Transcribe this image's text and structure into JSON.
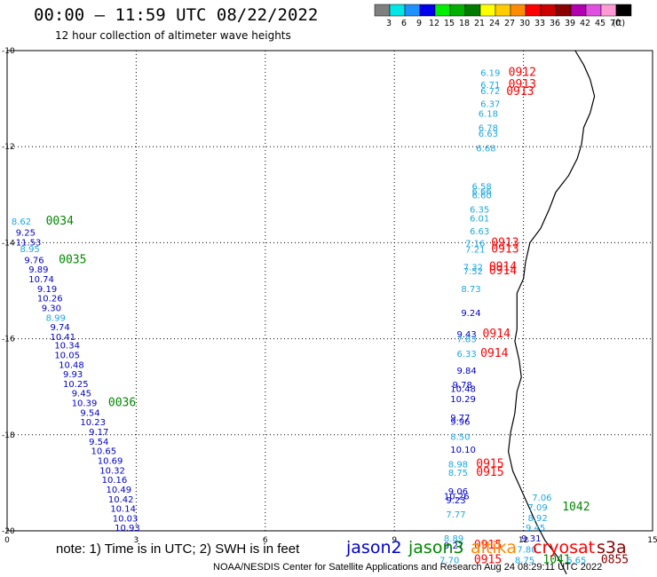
{
  "header": {
    "title": "00:00 – 11:59 UTC 08/22/2022",
    "subtitle": "12 hour collection of altimeter wave heights"
  },
  "legend": {
    "unit": "(ft)",
    "bins": [
      {
        "label": "3",
        "color": "#7f7f7f"
      },
      {
        "label": "6",
        "color": "#00e5e5"
      },
      {
        "label": "9",
        "color": "#1e90ff"
      },
      {
        "label": "12",
        "color": "#0000ee"
      },
      {
        "label": "15",
        "color": "#00ee00"
      },
      {
        "label": "18",
        "color": "#00b000"
      },
      {
        "label": "21",
        "color": "#007a00"
      },
      {
        "label": "24",
        "color": "#ffff00"
      },
      {
        "label": "27",
        "color": "#ffcc00"
      },
      {
        "label": "30",
        "color": "#ff8c00"
      },
      {
        "label": "33",
        "color": "#ff0000"
      },
      {
        "label": "36",
        "color": "#cc0000"
      },
      {
        "label": "39",
        "color": "#8b0000"
      },
      {
        "label": "42",
        "color": "#b000b0"
      },
      {
        "label": "45",
        "color": "#e04fe0"
      },
      {
        "label": "70",
        "color": "#ff9ad5"
      },
      {
        "label": "",
        "color": "#000000"
      }
    ]
  },
  "axes": {
    "x_ticks": [
      {
        "label": "0",
        "value": 0
      },
      {
        "label": "3",
        "value": 3
      },
      {
        "label": "6",
        "value": 6
      },
      {
        "label": "9",
        "value": 9
      },
      {
        "label": "12",
        "value": 12
      },
      {
        "label": "15",
        "value": 15
      }
    ],
    "y_ticks": [
      {
        "label": "-10",
        "value": -10
      },
      {
        "label": "-12",
        "value": -12
      },
      {
        "label": "-14",
        "value": -14
      },
      {
        "label": "-16",
        "value": -16
      },
      {
        "label": "-18",
        "value": -18
      },
      {
        "label": "-20",
        "value": -20
      }
    ]
  },
  "colors": {
    "jason2": "#0000cc",
    "jason3": "#008800",
    "altika": "#ff8800",
    "cryosat": "#ff0000",
    "s3a": "#8b0000",
    "light": "#1ea7e0"
  },
  "observations": [
    {
      "lon": 0.1,
      "lat": -13.55,
      "text": "8.62",
      "color": "light"
    },
    {
      "lon": 0.9,
      "lat": -13.55,
      "text": "0034",
      "color": "jason3"
    },
    {
      "lon": 0.2,
      "lat": -13.78,
      "text": "9.25",
      "color": "jason2"
    },
    {
      "lon": 0.2,
      "lat": -13.98,
      "text": "11.53",
      "color": "jason2"
    },
    {
      "lon": 0.3,
      "lat": -14.12,
      "text": "8.95",
      "color": "light"
    },
    {
      "lon": 0.4,
      "lat": -14.35,
      "text": "9.76",
      "color": "jason2"
    },
    {
      "lon": 1.2,
      "lat": -14.35,
      "text": "0035",
      "color": "jason3"
    },
    {
      "lon": 0.5,
      "lat": -14.55,
      "text": "9.89",
      "color": "jason2"
    },
    {
      "lon": 0.5,
      "lat": -14.75,
      "text": "10.74",
      "color": "jason2"
    },
    {
      "lon": 0.7,
      "lat": -14.95,
      "text": "9.19",
      "color": "jason2"
    },
    {
      "lon": 0.7,
      "lat": -15.15,
      "text": "10.26",
      "color": "jason2"
    },
    {
      "lon": 0.8,
      "lat": -15.35,
      "text": "9.30",
      "color": "jason2"
    },
    {
      "lon": 0.9,
      "lat": -15.55,
      "text": "8.99",
      "color": "light"
    },
    {
      "lon": 1.0,
      "lat": -15.75,
      "text": "9.74",
      "color": "jason2"
    },
    {
      "lon": 1.0,
      "lat": -15.95,
      "text": "10.41",
      "color": "jason2"
    },
    {
      "lon": 1.1,
      "lat": -16.13,
      "text": "10.34",
      "color": "jason2"
    },
    {
      "lon": 1.1,
      "lat": -16.33,
      "text": "10.05",
      "color": "jason2"
    },
    {
      "lon": 1.2,
      "lat": -16.53,
      "text": "10.48",
      "color": "jason2"
    },
    {
      "lon": 1.3,
      "lat": -16.73,
      "text": "9.93",
      "color": "jason2"
    },
    {
      "lon": 1.3,
      "lat": -16.93,
      "text": "10.25",
      "color": "jason2"
    },
    {
      "lon": 1.5,
      "lat": -17.13,
      "text": "9.45",
      "color": "jason2"
    },
    {
      "lon": 1.5,
      "lat": -17.33,
      "text": "10.39",
      "color": "jason2"
    },
    {
      "lon": 2.35,
      "lat": -17.33,
      "text": "0036",
      "color": "jason3"
    },
    {
      "lon": 1.7,
      "lat": -17.53,
      "text": "9.54",
      "color": "jason2"
    },
    {
      "lon": 1.7,
      "lat": -17.73,
      "text": "10.23",
      "color": "jason2"
    },
    {
      "lon": 1.9,
      "lat": -17.93,
      "text": "9.17",
      "color": "jason2"
    },
    {
      "lon": 1.9,
      "lat": -18.13,
      "text": "9.54",
      "color": "jason2"
    },
    {
      "lon": 1.95,
      "lat": -18.33,
      "text": "10.65",
      "color": "jason2"
    },
    {
      "lon": 2.1,
      "lat": -18.53,
      "text": "10.69",
      "color": "jason2"
    },
    {
      "lon": 2.15,
      "lat": -18.73,
      "text": "10.32",
      "color": "jason2"
    },
    {
      "lon": 2.2,
      "lat": -18.93,
      "text": "10.16",
      "color": "jason2"
    },
    {
      "lon": 2.3,
      "lat": -19.13,
      "text": "10.49",
      "color": "jason2"
    },
    {
      "lon": 2.35,
      "lat": -19.33,
      "text": "10.42",
      "color": "jason2"
    },
    {
      "lon": 2.4,
      "lat": -19.53,
      "text": "10.14",
      "color": "jason2"
    },
    {
      "lon": 2.45,
      "lat": -19.73,
      "text": "10.03",
      "color": "jason2"
    },
    {
      "lon": 2.5,
      "lat": -19.93,
      "text": "10.93",
      "color": "jason2"
    },
    {
      "lon": 11.0,
      "lat": -10.45,
      "text": "6.19",
      "color": "light"
    },
    {
      "lon": 11.65,
      "lat": -10.45,
      "text": "0912",
      "color": "cryosat"
    },
    {
      "lon": 11.0,
      "lat": -10.7,
      "text": "6.71",
      "color": "light"
    },
    {
      "lon": 11.65,
      "lat": -10.7,
      "text": "0913",
      "color": "cryosat"
    },
    {
      "lon": 11.0,
      "lat": -10.83,
      "text": "6.72",
      "color": "light"
    },
    {
      "lon": 11.6,
      "lat": -10.85,
      "text": "0913",
      "color": "cryosat"
    },
    {
      "lon": 11.0,
      "lat": -11.1,
      "text": "6.37",
      "color": "light"
    },
    {
      "lon": 10.95,
      "lat": -11.3,
      "text": "6.18",
      "color": "light"
    },
    {
      "lon": 10.95,
      "lat": -11.6,
      "text": "6.78",
      "color": "light"
    },
    {
      "lon": 10.95,
      "lat": -11.72,
      "text": "6.63",
      "color": "light"
    },
    {
      "lon": 10.9,
      "lat": -12.02,
      "text": "6.68",
      "color": "light"
    },
    {
      "lon": 10.8,
      "lat": -12.82,
      "text": "6.58",
      "color": "light"
    },
    {
      "lon": 10.8,
      "lat": -12.92,
      "text": "6.66",
      "color": "light"
    },
    {
      "lon": 10.8,
      "lat": -13.0,
      "text": "6.60",
      "color": "light"
    },
    {
      "lon": 10.75,
      "lat": -13.3,
      "text": "6.35",
      "color": "light"
    },
    {
      "lon": 10.75,
      "lat": -13.48,
      "text": "6.01",
      "color": "light"
    },
    {
      "lon": 10.75,
      "lat": -13.75,
      "text": "6.63",
      "color": "light"
    },
    {
      "lon": 10.65,
      "lat": -14.0,
      "text": "7.16",
      "color": "light"
    },
    {
      "lon": 11.25,
      "lat": -14.0,
      "text": "0913",
      "color": "cryosat"
    },
    {
      "lon": 10.65,
      "lat": -14.13,
      "text": "7.21",
      "color": "light"
    },
    {
      "lon": 11.25,
      "lat": -14.13,
      "text": "0913",
      "color": "cryosat"
    },
    {
      "lon": 10.6,
      "lat": -14.5,
      "text": "7.32",
      "color": "light"
    },
    {
      "lon": 11.2,
      "lat": -14.5,
      "text": "0914",
      "color": "cryosat"
    },
    {
      "lon": 10.6,
      "lat": -14.58,
      "text": "7.52",
      "color": "light"
    },
    {
      "lon": 11.2,
      "lat": -14.58,
      "text": "0914",
      "color": "cryosat"
    },
    {
      "lon": 10.55,
      "lat": -14.95,
      "text": "8.73",
      "color": "light"
    },
    {
      "lon": 10.55,
      "lat": -15.45,
      "text": "9.24",
      "color": "jason2"
    },
    {
      "lon": 10.45,
      "lat": -15.9,
      "text": "9.43",
      "color": "jason2"
    },
    {
      "lon": 11.05,
      "lat": -15.9,
      "text": "0914",
      "color": "cryosat"
    },
    {
      "lon": 10.45,
      "lat": -16.0,
      "text": "7.83",
      "color": "light"
    },
    {
      "lon": 10.45,
      "lat": -16.3,
      "text": "6.33",
      "color": "light"
    },
    {
      "lon": 11.0,
      "lat": -16.3,
      "text": "0914",
      "color": "cryosat"
    },
    {
      "lon": 10.45,
      "lat": -16.65,
      "text": "9.84",
      "color": "jason2"
    },
    {
      "lon": 10.35,
      "lat": -16.95,
      "text": "9.78",
      "color": "jason2"
    },
    {
      "lon": 10.3,
      "lat": -17.03,
      "text": "10.48",
      "color": "jason2"
    },
    {
      "lon": 10.3,
      "lat": -17.25,
      "text": "10.29",
      "color": "jason2"
    },
    {
      "lon": 10.3,
      "lat": -17.63,
      "text": "9.77",
      "color": "jason2"
    },
    {
      "lon": 10.3,
      "lat": -17.72,
      "text": "9.96",
      "color": "jason2"
    },
    {
      "lon": 10.3,
      "lat": -18.03,
      "text": "8.50",
      "color": "light"
    },
    {
      "lon": 10.3,
      "lat": -18.3,
      "text": "10.10",
      "color": "jason2"
    },
    {
      "lon": 10.25,
      "lat": -18.6,
      "text": "8.98",
      "color": "light"
    },
    {
      "lon": 10.9,
      "lat": -18.6,
      "text": "0915",
      "color": "cryosat"
    },
    {
      "lon": 10.25,
      "lat": -18.78,
      "text": "8.75",
      "color": "light"
    },
    {
      "lon": 10.9,
      "lat": -18.78,
      "text": "0915",
      "color": "cryosat"
    },
    {
      "lon": 10.25,
      "lat": -19.17,
      "text": "9.06",
      "color": "jason2"
    },
    {
      "lon": 10.15,
      "lat": -19.27,
      "text": "10.26",
      "color": "jason2"
    },
    {
      "lon": 10.2,
      "lat": -19.35,
      "text": "9.23",
      "color": "jason2"
    },
    {
      "lon": 10.2,
      "lat": -19.65,
      "text": "7.77",
      "color": "light"
    },
    {
      "lon": 10.15,
      "lat": -20.15,
      "text": "8.89",
      "color": "light"
    },
    {
      "lon": 10.15,
      "lat": -20.3,
      "text": "9.27",
      "color": "jason2"
    },
    {
      "lon": 10.85,
      "lat": -20.3,
      "text": "0915",
      "color": "cryosat"
    },
    {
      "lon": 10.05,
      "lat": -20.6,
      "text": "7.70",
      "color": "light"
    },
    {
      "lon": 10.85,
      "lat": -20.6,
      "text": "0915",
      "color": "cryosat"
    },
    {
      "lon": 12.2,
      "lat": -19.3,
      "text": "7.06",
      "color": "light"
    },
    {
      "lon": 12.1,
      "lat": -19.5,
      "text": "7.09",
      "color": "light"
    },
    {
      "lon": 12.9,
      "lat": -19.5,
      "text": "1042",
      "color": "jason3"
    },
    {
      "lon": 12.1,
      "lat": -19.72,
      "text": "8.92",
      "color": "light"
    },
    {
      "lon": 12.05,
      "lat": -19.93,
      "text": "9.45",
      "color": "light"
    },
    {
      "lon": 11.95,
      "lat": -20.15,
      "text": "9.31",
      "color": "jason2"
    },
    {
      "lon": 11.85,
      "lat": -20.38,
      "text": "7.80",
      "color": "light"
    },
    {
      "lon": 11.8,
      "lat": -20.6,
      "text": "8.75",
      "color": "light"
    },
    {
      "lon": 12.45,
      "lat": -20.6,
      "text": "1041",
      "color": "jason3"
    },
    {
      "lon": 13.0,
      "lat": -20.6,
      "text": "6.65",
      "color": "light"
    },
    {
      "lon": 13.8,
      "lat": -20.6,
      "text": "0855",
      "color": "s3a"
    }
  ],
  "coastline": [
    [
      13.2,
      -10.0
    ],
    [
      13.4,
      -10.3
    ],
    [
      13.55,
      -10.6
    ],
    [
      13.65,
      -10.95
    ],
    [
      13.55,
      -11.3
    ],
    [
      13.4,
      -11.6
    ],
    [
      13.35,
      -11.95
    ],
    [
      13.25,
      -12.25
    ],
    [
      13.05,
      -12.6
    ],
    [
      12.75,
      -12.95
    ],
    [
      12.6,
      -13.3
    ],
    [
      12.4,
      -13.7
    ],
    [
      12.15,
      -14.0
    ],
    [
      12.05,
      -14.4
    ],
    [
      12.0,
      -14.75
    ],
    [
      11.85,
      -15.05
    ],
    [
      11.85,
      -15.4
    ],
    [
      11.85,
      -15.8
    ],
    [
      11.8,
      -16.05
    ],
    [
      11.9,
      -16.45
    ],
    [
      11.95,
      -16.8
    ],
    [
      11.85,
      -17.1
    ],
    [
      11.8,
      -17.55
    ],
    [
      11.7,
      -17.95
    ],
    [
      11.65,
      -18.35
    ],
    [
      11.75,
      -18.75
    ],
    [
      11.95,
      -19.15
    ],
    [
      12.15,
      -19.55
    ],
    [
      12.3,
      -19.85
    ],
    [
      12.5,
      -20.2
    ],
    [
      12.8,
      -20.55
    ],
    [
      13.0,
      -20.9
    ]
  ],
  "footer": {
    "note": "note:  1) Time is in UTC;  2) SWH is in feet",
    "credit": "NOAA/NESDIS Center for Satellite Applications and Research     Aug 24 08:29:11 UTC 2022",
    "satellites": [
      {
        "label": "jason2",
        "color": "jason2"
      },
      {
        "label": "jason3",
        "color": "jason3"
      },
      {
        "label": "altika",
        "color": "altika"
      },
      {
        "label": "cryosat",
        "color": "cryosat"
      },
      {
        "label": "s3a",
        "color": "s3a"
      }
    ]
  }
}
